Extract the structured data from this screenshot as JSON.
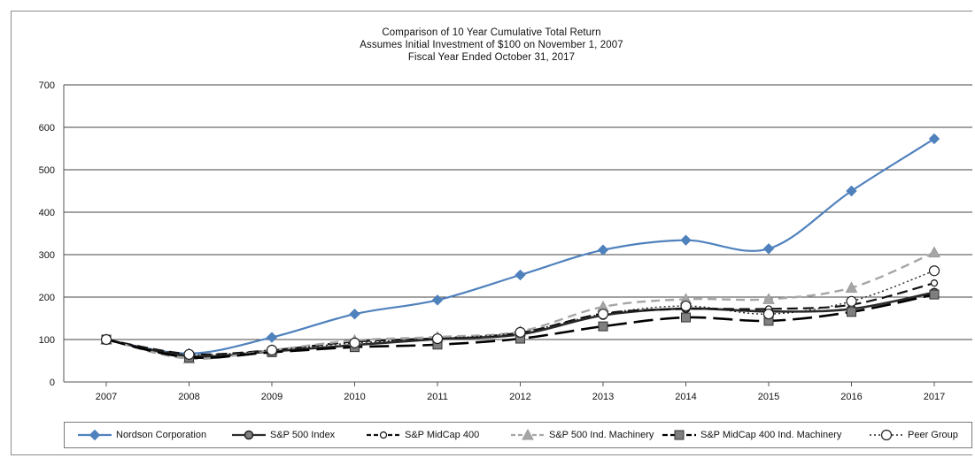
{
  "chart_data": {
    "type": "line",
    "title": "Comparison of 10 Year Cumulative Total Return",
    "subtitle_lines": [
      "Assumes Initial Investment of $100 on November 1, 2007",
      "Fiscal Year Ended October 31, 2017"
    ],
    "x": [
      "2007",
      "2008",
      "2009",
      "2010",
      "2011",
      "2012",
      "2013",
      "2014",
      "2015",
      "2016",
      "2017"
    ],
    "ylim": [
      0,
      700
    ],
    "yticks": [
      0,
      100,
      200,
      300,
      400,
      500,
      600,
      700
    ],
    "grid": true,
    "legend_position": "bottom",
    "series": [
      {
        "name": "Nordson Corporation",
        "color": "#4f81bd",
        "dash": "",
        "width": 2.2,
        "marker": "diamond",
        "values": [
          100,
          67,
          105,
          160,
          193,
          252,
          311,
          334,
          314,
          450,
          573
        ]
      },
      {
        "name": "S&P 500 Index",
        "color": "#2b2b2b",
        "dash": "",
        "width": 2.6,
        "marker": "circle-solid",
        "values": [
          100,
          61,
          72,
          87,
          101,
          112,
          157,
          173,
          166,
          172,
          211
        ]
      },
      {
        "name": "S&P MidCap 400",
        "color": "#111111",
        "dash": "12,6",
        "width": 2.2,
        "marker": "circle-open",
        "values": [
          100,
          66,
          75,
          95,
          103,
          116,
          161,
          172,
          172,
          182,
          233
        ]
      },
      {
        "name": "S&P 500 Ind. Machinery",
        "color": "#a6a6a6",
        "dash": "10,6",
        "width": 2.4,
        "marker": "triangle",
        "values": [
          100,
          55,
          75,
          98,
          106,
          119,
          177,
          195,
          195,
          222,
          305
        ]
      },
      {
        "name": "S&P MidCap 400 Ind. Machinery",
        "color": "#000000",
        "dash": "22,8",
        "width": 2.6,
        "marker": "square",
        "values": [
          100,
          58,
          70,
          82,
          88,
          102,
          131,
          152,
          144,
          165,
          206
        ]
      },
      {
        "name": "Peer Group",
        "color": "#222222",
        "dash": "2,3",
        "width": 1.4,
        "marker": "circle-open-large",
        "values": [
          100,
          65,
          75,
          92,
          102,
          117,
          160,
          179,
          160,
          190,
          262
        ]
      }
    ]
  }
}
